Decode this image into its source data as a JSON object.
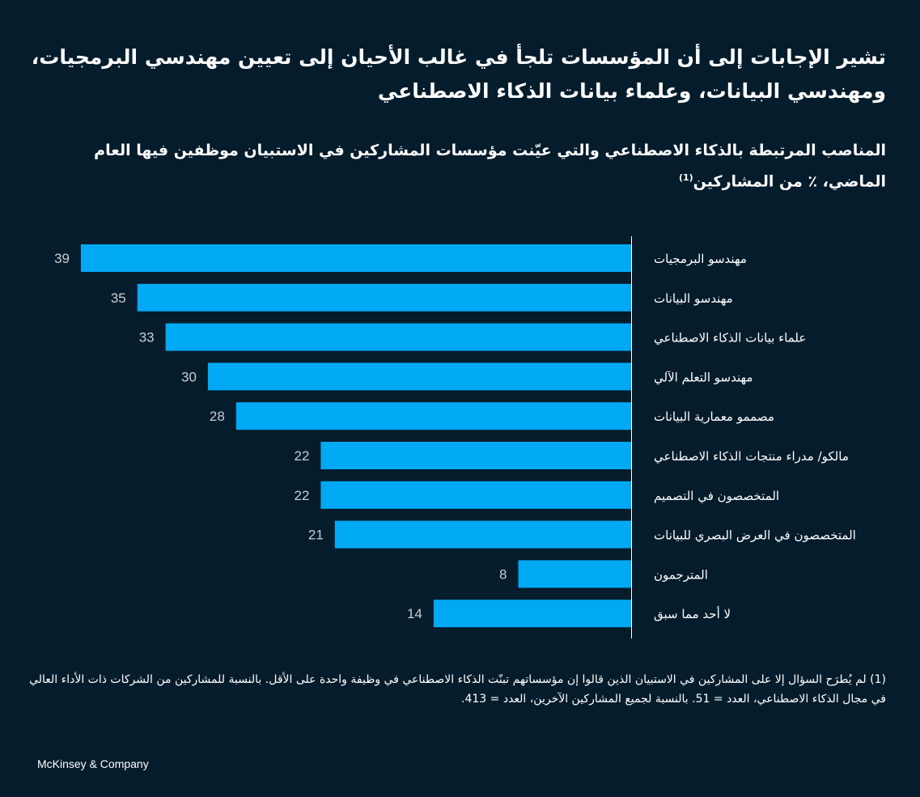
{
  "title": "تشير الإجابات إلى أن المؤسسات تلجأ في غالب الأحيان إلى تعيين مهندسي البرمجيات، ومهندسي البيانات، وعلماء بيانات الذكاء الاصطناعي",
  "subtitle": "المناصب المرتبطة بالذكاء الاصطناعي والتي عيّنت مؤسسات المشاركين في الاستبيان موظفين فيها العام الماضي، ٪ من المشاركين",
  "subtitle_note": "(1)",
  "footnote": "(1) لم يُطرَح السؤال إلا على المشاركين في الاستبيان الذين قالوا إن مؤسساتهم تبنّت الذكاء الاصطناعي في وظيفة واحدة على الأقل. بالنسبة للمشاركين من الشركات ذات الأداء العالي في مجال الذكاء الاصطناعي، العدد = 51. بالنسبة لجميع المشاركين الآخرين، العدد = 413.",
  "brand": "McKinsey & Company",
  "colors": {
    "background": "#051c2c",
    "bar": "#00a9f4",
    "text": "#ffffff",
    "value": "#c8cdd2",
    "axis": "#ffffff"
  },
  "chart_data": {
    "type": "bar",
    "orientation": "horizontal",
    "bar_direction": "right-to-left",
    "unit": "%",
    "xlim": [
      0,
      39
    ],
    "categories": [
      "مهندسو البرمجيات",
      "مهندسو البيانات",
      "علماء بيانات الذكاء الاصطناعي",
      "مهندسو التعلم الآلي",
      "مصممو معمارية البيانات",
      "مالكو/ مدراء منتجات الذكاء الاصطناعي",
      "المتخصصون في التصميم",
      "المتخصصون في العرض البصري للبيانات",
      "المترجمون",
      "لا أحد مما سبق"
    ],
    "values": [
      39,
      35,
      33,
      30,
      28,
      22,
      22,
      21,
      8,
      14
    ]
  }
}
